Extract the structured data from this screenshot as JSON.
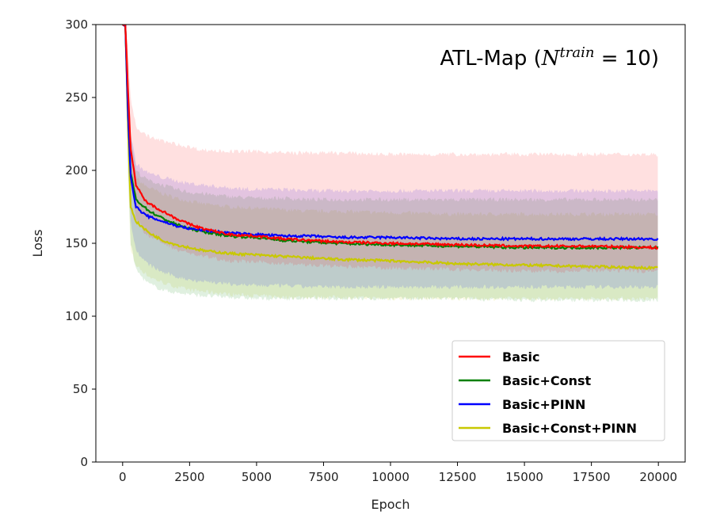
{
  "chart_data": {
    "type": "line",
    "title_prefix": "ATL-Map (",
    "title_var": "N",
    "title_sup": "train",
    "title_suffix": " = 10)",
    "xlabel": "Epoch",
    "ylabel": "Loss",
    "xlim": [
      -1000,
      21000
    ],
    "ylim": [
      0,
      300
    ],
    "xticks": [
      0,
      2500,
      5000,
      7500,
      10000,
      12500,
      15000,
      17500,
      20000
    ],
    "yticks": [
      0,
      50,
      100,
      150,
      200,
      250,
      300
    ],
    "legend_position": "lower-right",
    "series": [
      {
        "name": "Basic",
        "color": "#ff0000",
        "band_color": "#ff0000",
        "x": [
          0,
          100,
          200,
          300,
          500,
          800,
          1000,
          1500,
          2000,
          2500,
          3000,
          4000,
          5000,
          6000,
          7000,
          8000,
          10000,
          12500,
          15000,
          17500,
          20000
        ],
        "mean": [
          300,
          300,
          255,
          215,
          190,
          180,
          177,
          172,
          167,
          163,
          160,
          156,
          155,
          153,
          152,
          151,
          150,
          149,
          148,
          148,
          147
        ],
        "lower": [
          300,
          300,
          240,
          195,
          168,
          158,
          155,
          150,
          146,
          143,
          141,
          138,
          137,
          136,
          135,
          134,
          133,
          132,
          131,
          131,
          131
        ],
        "upper": [
          300,
          300,
          285,
          250,
          230,
          225,
          223,
          220,
          218,
          216,
          214,
          213,
          213,
          212,
          212,
          212,
          211,
          211,
          211,
          211,
          211
        ]
      },
      {
        "name": "Basic+Const",
        "color": "#008000",
        "band_color": "#008000",
        "x": [
          0,
          100,
          200,
          300,
          500,
          800,
          1000,
          1500,
          2000,
          2500,
          3000,
          4000,
          5000,
          6000,
          7000,
          8000,
          10000,
          12500,
          15000,
          17500,
          20000
        ],
        "mean": [
          300,
          300,
          240,
          198,
          180,
          175,
          172,
          167,
          163,
          160,
          158,
          155,
          154,
          152,
          151,
          150,
          149,
          148,
          147,
          147,
          147
        ],
        "lower": [
          300,
          300,
          200,
          150,
          132,
          125,
          122,
          118,
          116,
          115,
          114,
          113,
          112,
          112,
          112,
          112,
          112,
          112,
          111,
          111,
          111
        ],
        "upper": [
          300,
          300,
          270,
          225,
          200,
          195,
          193,
          190,
          187,
          185,
          184,
          182,
          181,
          181,
          180,
          180,
          180,
          180,
          180,
          180,
          180
        ]
      },
      {
        "name": "Basic+PINN",
        "color": "#0000ff",
        "band_color": "#0000ff",
        "x": [
          0,
          100,
          200,
          300,
          500,
          800,
          1000,
          1500,
          2000,
          2500,
          3000,
          4000,
          5000,
          6000,
          7000,
          8000,
          10000,
          12500,
          15000,
          17500,
          20000
        ],
        "mean": [
          300,
          300,
          240,
          195,
          175,
          170,
          168,
          165,
          162,
          160,
          159,
          157,
          156,
          155,
          155,
          154,
          154,
          153,
          153,
          153,
          153
        ],
        "lower": [
          300,
          300,
          210,
          165,
          145,
          138,
          135,
          130,
          127,
          125,
          124,
          122,
          121,
          121,
          120,
          120,
          120,
          120,
          120,
          120,
          120
        ],
        "upper": [
          300,
          300,
          270,
          225,
          205,
          200,
          198,
          195,
          193,
          191,
          190,
          188,
          187,
          187,
          186,
          186,
          186,
          186,
          186,
          186,
          186
        ]
      },
      {
        "name": "Basic+Const+PINN",
        "color": "#c8c800",
        "band_color": "#c8c800",
        "x": [
          0,
          100,
          200,
          300,
          500,
          800,
          1000,
          1500,
          2000,
          2500,
          3000,
          4000,
          5000,
          6000,
          7000,
          8000,
          10000,
          12500,
          15000,
          17500,
          20000
        ],
        "mean": [
          300,
          300,
          230,
          175,
          165,
          160,
          157,
          152,
          149,
          147,
          145,
          143,
          142,
          141,
          140,
          139,
          138,
          136,
          135,
          134,
          133
        ],
        "lower": [
          300,
          300,
          195,
          145,
          135,
          130,
          127,
          123,
          120,
          118,
          117,
          115,
          114,
          113,
          113,
          113,
          112,
          112,
          112,
          112,
          112
        ],
        "upper": [
          300,
          300,
          260,
          205,
          195,
          190,
          188,
          184,
          181,
          179,
          177,
          175,
          174,
          173,
          172,
          172,
          171,
          170,
          170,
          170,
          170
        ]
      }
    ],
    "series_order_drawn": [
      "Basic+Const+PINN",
      "Basic+Const",
      "Basic+PINN",
      "Basic"
    ],
    "legend_order": [
      "Basic",
      "Basic+Const",
      "Basic+PINN",
      "Basic+Const+PINN"
    ]
  }
}
